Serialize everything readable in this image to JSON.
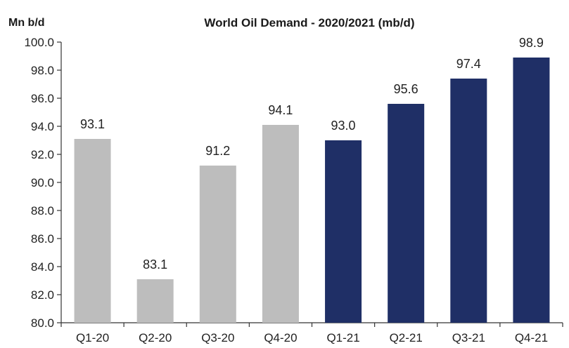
{
  "chart_data": {
    "type": "bar",
    "title": "World Oil Demand - 2020/2021 (mb/d)",
    "ylabel": "Mn b/d",
    "xlabel": "",
    "ylim": [
      80.0,
      100.0
    ],
    "yticks": [
      "80.0",
      "82.0",
      "84.0",
      "86.0",
      "88.0",
      "90.0",
      "92.0",
      "94.0",
      "96.0",
      "98.0",
      "100.0"
    ],
    "categories": [
      "Q1-20",
      "Q2-20",
      "Q3-20",
      "Q4-20",
      "Q1-21",
      "Q2-21",
      "Q3-21",
      "Q4-21"
    ],
    "values": [
      93.1,
      83.1,
      91.2,
      94.1,
      93.0,
      95.6,
      97.4,
      98.9
    ],
    "value_labels": [
      "93.1",
      "83.1",
      "91.2",
      "94.1",
      "93.0",
      "95.6",
      "97.4",
      "98.9"
    ],
    "bar_colors": [
      "#bdbdbd",
      "#bdbdbd",
      "#bdbdbd",
      "#bdbdbd",
      "#1f2f66",
      "#1f2f66",
      "#1f2f66",
      "#1f2f66"
    ],
    "grid": false,
    "legend": "none"
  }
}
